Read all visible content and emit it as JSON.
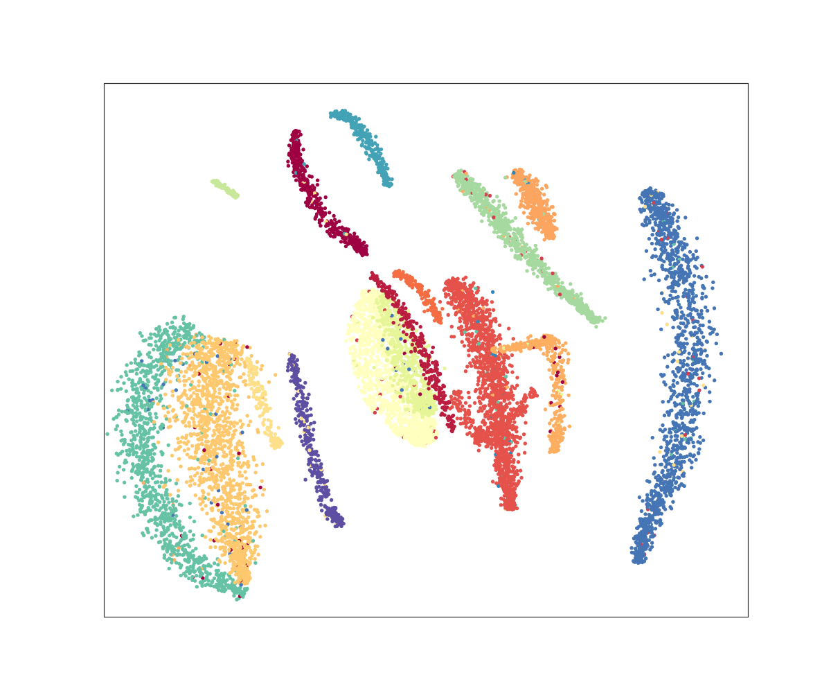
{
  "chart_data": {
    "type": "scatter",
    "title": "",
    "xlabel": "",
    "ylabel": "",
    "axes": {
      "ticks_shown": false,
      "grid": false,
      "legend": "none"
    },
    "xlim": [
      0,
      100
    ],
    "ylim": [
      0,
      100
    ],
    "point_estimate_note_free": true,
    "clusters": [
      {
        "color": "#4575b4",
        "shape": "arc",
        "points": 1400,
        "path": [
          [
            84.4,
            80.2
          ],
          [
            86.8,
            74.0
          ],
          [
            89.6,
            64.0
          ],
          [
            91.2,
            52.0
          ],
          [
            90.8,
            40.0
          ],
          [
            88.4,
            28.0
          ],
          [
            84.8,
            18.5
          ],
          [
            82.8,
            10.2
          ]
        ],
        "width": [
          1.2,
          2.6,
          3.4,
          3.6,
          3.2,
          2.6,
          1.8,
          0.8
        ],
        "mixin": [
          "#d53e4f",
          "#fee08b",
          "#66c2a5"
        ]
      },
      {
        "color": "#66c2a5",
        "shape": "band",
        "points": 1100,
        "path": [
          [
            14.4,
            54.0
          ],
          [
            8.4,
            49.0
          ],
          [
            5.4,
            40.0
          ],
          [
            5.4,
            30.0
          ],
          [
            8.6,
            19.5
          ],
          [
            13.0,
            9.8
          ],
          [
            22.0,
            4.5
          ]
        ],
        "width": [
          3.0,
          4.0,
          3.2,
          3.2,
          3.2,
          2.6,
          1.2
        ],
        "mixin": [
          "#fdae61",
          "#9e0142",
          "#4575b4"
        ]
      },
      {
        "color": "#fdc86e",
        "shape": "band",
        "points": 1500,
        "path": [
          [
            18.4,
            52.0
          ],
          [
            16.6,
            44.0
          ],
          [
            15.6,
            35.0
          ],
          [
            18.8,
            25.0
          ],
          [
            20.6,
            15.0
          ],
          [
            21.6,
            6.2
          ]
        ],
        "width": [
          3.6,
          5.6,
          5.6,
          4.6,
          3.0,
          0.8
        ],
        "mixin": [
          "#66c2a5",
          "#9e0142",
          "#4575b4"
        ]
      },
      {
        "color": "#fee08b",
        "shape": "band",
        "points": 160,
        "path": [
          [
            22.2,
            48.5
          ],
          [
            24.0,
            42.0
          ],
          [
            26.2,
            33.5
          ],
          [
            27.2,
            31.8
          ]
        ],
        "width": [
          0.6,
          1.0,
          1.0,
          0.6
        ],
        "mixin": []
      },
      {
        "color": "#5e4fa2",
        "shape": "band",
        "points": 380,
        "path": [
          [
            29.0,
            49.5
          ],
          [
            30.8,
            40.0
          ],
          [
            32.2,
            30.0
          ],
          [
            35.0,
            20.0
          ],
          [
            36.8,
            17.0
          ]
        ],
        "width": [
          0.5,
          0.9,
          1.2,
          1.0,
          0.5
        ],
        "mixin": [
          "#fee08b"
        ]
      },
      {
        "color": "#ffffbf",
        "shape": "blob",
        "points": 1300,
        "path": [
          [
            41.6,
            61.2
          ],
          [
            41.0,
            53.0
          ],
          [
            43.8,
            43.0
          ],
          [
            48.4,
            35.8
          ],
          [
            50.4,
            32.5
          ]
        ],
        "width": [
          1.4,
          3.4,
          4.2,
          3.4,
          1.4
        ],
        "mixin": [
          "#e6f598",
          "#d53e4f"
        ]
      },
      {
        "color": "#e6f598",
        "shape": "band",
        "points": 650,
        "path": [
          [
            43.6,
            60.5
          ],
          [
            46.2,
            51.0
          ],
          [
            48.8,
            42.0
          ],
          [
            50.6,
            38.0
          ]
        ],
        "width": [
          1.2,
          3.0,
          3.0,
          1.2
        ],
        "mixin": [
          "#4575b4",
          "#9e0142",
          "#d53e4f"
        ]
      },
      {
        "color": "#ba1d3f",
        "shape": "band",
        "points": 280,
        "path": [
          [
            41.6,
            64.2
          ],
          [
            45.0,
            60.0
          ],
          [
            48.6,
            52.0
          ],
          [
            51.6,
            44.0
          ],
          [
            54.4,
            34.8
          ]
        ],
        "width": [
          0.4,
          0.9,
          1.3,
          1.2,
          0.6
        ],
        "mixin": []
      },
      {
        "color": "#f46d43",
        "shape": "band",
        "points": 160,
        "path": [
          [
            45.0,
            65.0
          ],
          [
            48.4,
            62.4
          ],
          [
            51.0,
            58.0
          ],
          [
            52.4,
            55.2
          ]
        ],
        "width": [
          0.5,
          0.9,
          0.9,
          0.4
        ],
        "mixin": []
      },
      {
        "color": "#e4524b",
        "shape": "band",
        "points": 1500,
        "path": [
          [
            53.8,
            63.2
          ],
          [
            57.4,
            57.0
          ],
          [
            59.6,
            49.0
          ],
          [
            61.0,
            40.0
          ],
          [
            62.0,
            31.0
          ],
          [
            63.2,
            20.0
          ]
        ],
        "width": [
          1.2,
          3.0,
          2.6,
          2.6,
          2.2,
          0.8
        ],
        "mixin": [
          "#fdae61",
          "#66c2a5",
          "#3288bd"
        ]
      },
      {
        "color": "#e4524b",
        "shape": "band",
        "points": 260,
        "path": [
          [
            54.4,
            42.0
          ],
          [
            57.6,
            33.6
          ],
          [
            61.4,
            34.0
          ],
          [
            66.8,
            42.5
          ]
        ],
        "width": [
          1.0,
          1.4,
          1.2,
          0.6
        ],
        "mixin": []
      },
      {
        "color": "#fdae61",
        "shape": "band",
        "points": 420,
        "path": [
          [
            60.4,
            49.8
          ],
          [
            66.0,
            51.0
          ],
          [
            70.0,
            52.0
          ],
          [
            70.4,
            45.0
          ],
          [
            70.4,
            35.0
          ],
          [
            69.8,
            31.0
          ]
        ],
        "width": [
          0.6,
          0.8,
          1.2,
          1.4,
          1.2,
          0.5
        ],
        "mixin": [
          "#9e0142",
          "#e6f598"
        ]
      },
      {
        "color": "#a6d99f",
        "shape": "band",
        "points": 800,
        "path": [
          [
            54.8,
            83.0
          ],
          [
            59.0,
            78.0
          ],
          [
            64.0,
            70.0
          ],
          [
            70.4,
            62.0
          ],
          [
            77.0,
            55.0
          ]
        ],
        "width": [
          1.0,
          1.8,
          1.6,
          1.0,
          0.6
        ],
        "mixin": [
          "#fdae61",
          "#d53e4f"
        ]
      },
      {
        "color": "#fba560",
        "shape": "band",
        "points": 520,
        "path": [
          [
            63.8,
            83.6
          ],
          [
            66.2,
            80.0
          ],
          [
            68.2,
            75.5
          ],
          [
            69.4,
            71.0
          ]
        ],
        "width": [
          0.8,
          1.6,
          1.8,
          0.8
        ],
        "mixin": [
          "#3288bd",
          "#a6d99f"
        ]
      },
      {
        "color": "#43a2b6",
        "shape": "band",
        "points": 300,
        "path": [
          [
            35.2,
            94.2
          ],
          [
            38.0,
            94.0
          ],
          [
            40.6,
            90.0
          ],
          [
            42.8,
            85.0
          ],
          [
            44.4,
            80.8
          ]
        ],
        "width": [
          0.5,
          0.8,
          1.0,
          0.8,
          0.4
        ],
        "mixin": []
      },
      {
        "color": "#9e0142",
        "shape": "band",
        "points": 520,
        "path": [
          [
            29.6,
            91.2
          ],
          [
            30.0,
            85.0
          ],
          [
            32.0,
            79.0
          ],
          [
            35.2,
            73.0
          ],
          [
            39.2,
            70.0
          ],
          [
            40.6,
            68.2
          ]
        ],
        "width": [
          0.5,
          0.9,
          1.2,
          1.2,
          0.9,
          0.4
        ],
        "mixin": [
          "#fee08b",
          "#43a2b6"
        ]
      },
      {
        "color": "#c7e89a",
        "shape": "band",
        "points": 90,
        "path": [
          [
            16.8,
            81.8
          ],
          [
            20.8,
            78.8
          ]
        ],
        "width": [
          0.25,
          0.25
        ],
        "mixin": []
      }
    ]
  }
}
